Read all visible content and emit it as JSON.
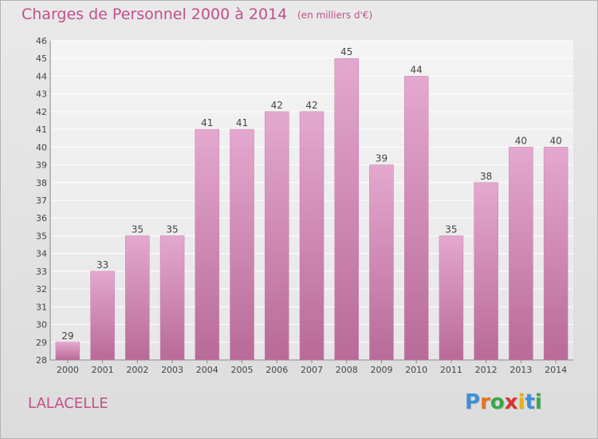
{
  "header": {
    "title": "Charges de Personnel 2000 à 2014",
    "subtitle": "(en milliers d'€)"
  },
  "footer": {
    "place": "LALACELLE",
    "logo_letters": [
      "P",
      "r",
      "o",
      "x",
      "i",
      "t",
      "i"
    ],
    "logo_colors": [
      "#3d8fd6",
      "#e8731c",
      "#3aa64a",
      "#d8342c",
      "#e3b21a",
      "#3d8fd6",
      "#3aa64a"
    ]
  },
  "chart_data": {
    "type": "bar",
    "categories": [
      "2000",
      "2001",
      "2002",
      "2003",
      "2004",
      "2005",
      "2006",
      "2007",
      "2008",
      "2009",
      "2010",
      "2011",
      "2012",
      "2013",
      "2014"
    ],
    "values": [
      29,
      33,
      35,
      35,
      41,
      41,
      42,
      42,
      45,
      39,
      44,
      35,
      38,
      40,
      40
    ],
    "ylim": [
      28,
      46
    ],
    "yticks": [
      28,
      29,
      30,
      31,
      32,
      33,
      34,
      35,
      36,
      37,
      38,
      39,
      40,
      41,
      42,
      43,
      44,
      45,
      46
    ],
    "grid": true,
    "bar_color_top": "#e4a8cf",
    "bar_color_bottom": "#b86a98",
    "text_color": "#444444"
  }
}
